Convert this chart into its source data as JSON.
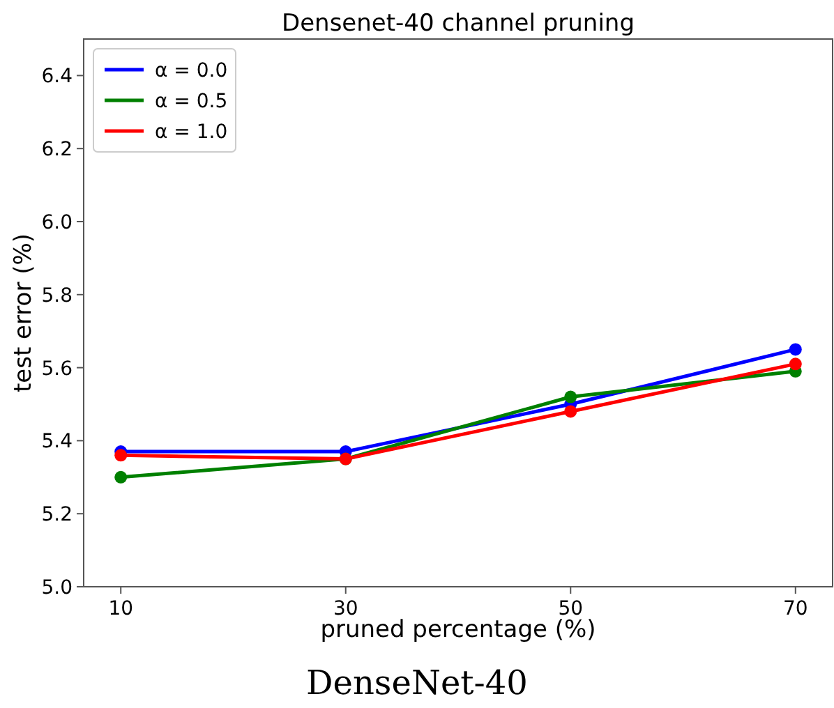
{
  "chart_data": {
    "type": "line",
    "title": "Densenet-40 channel pruning",
    "xlabel": "pruned percentage (%)",
    "ylabel": "test error (%)",
    "x": [
      10,
      30,
      50,
      70
    ],
    "xlim": [
      6.7,
      73.3
    ],
    "xticks": [
      10,
      30,
      50,
      70
    ],
    "ylim": [
      5.0,
      6.5
    ],
    "yticks": [
      {
        "value": 5.0,
        "label": "5.0"
      },
      5.2,
      5.4,
      5.6,
      5.8,
      {
        "value": 6.0,
        "label": "6.0"
      },
      6.2,
      6.4
    ],
    "series": [
      {
        "name": "α = 0.0",
        "color": "#0000ff",
        "values": [
          5.37,
          5.37,
          5.5,
          5.65
        ]
      },
      {
        "name": "α = 0.5",
        "color": "#008000",
        "values": [
          5.3,
          5.35,
          5.52,
          5.59
        ]
      },
      {
        "name": "α = 1.0",
        "color": "#ff0000",
        "values": [
          5.36,
          5.35,
          5.48,
          5.61
        ]
      }
    ],
    "marker": "circle",
    "line_style": "solid",
    "legend": "top left",
    "grid": false,
    "annotations": [
      "DenseNet-40"
    ]
  }
}
